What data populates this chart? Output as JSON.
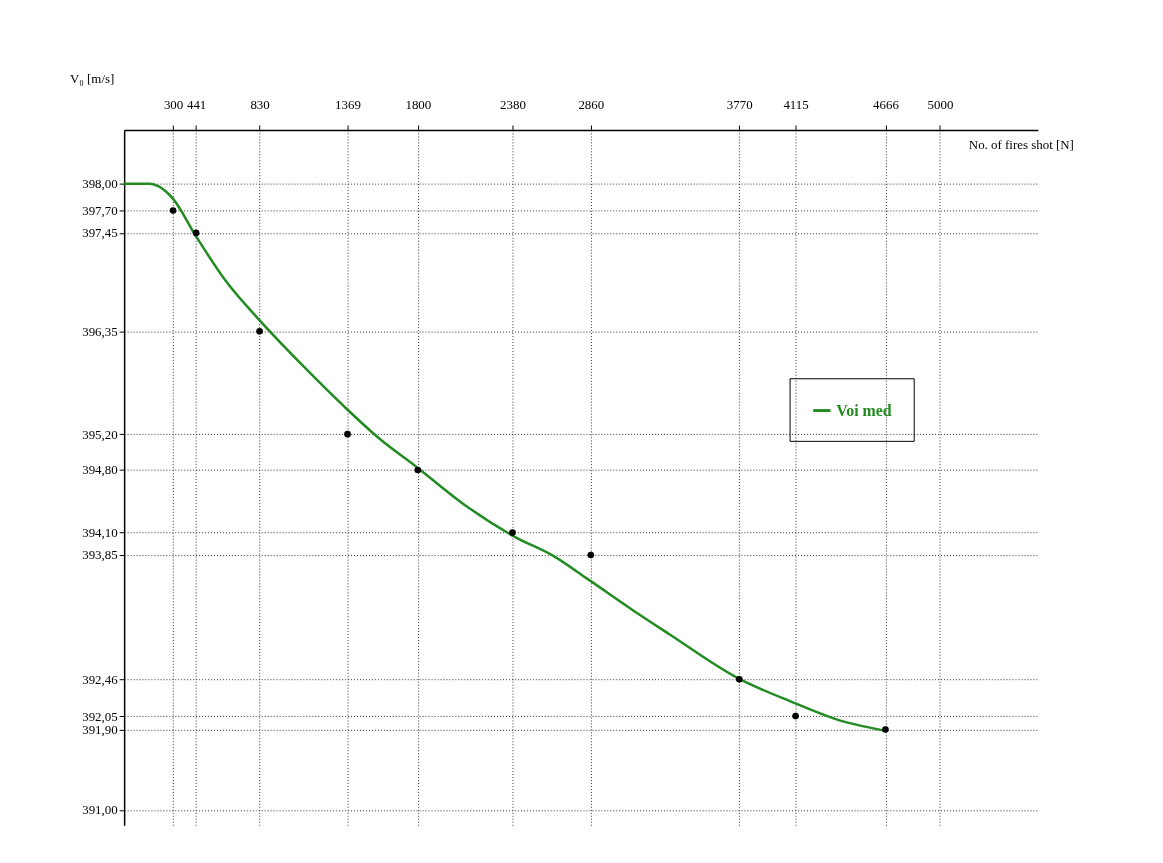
{
  "chart_data": {
    "type": "scatter",
    "xlabel": "No. of fires shot [N]",
    "ylabel": "V₀ [m/s]",
    "xlim": [
      0,
      5600
    ],
    "ylim": [
      390.83,
      398.6
    ],
    "xticks": [
      300,
      441,
      830,
      1369,
      1800,
      2380,
      2860,
      3770,
      4115,
      4666,
      5000
    ],
    "yticks": [
      {
        "value": 398.0,
        "label": "398,00"
      },
      {
        "value": 397.7,
        "label": "397,70"
      },
      {
        "value": 397.45,
        "label": "397,45"
      },
      {
        "value": 396.35,
        "label": "396,35"
      },
      {
        "value": 395.2,
        "label": "395,20"
      },
      {
        "value": 394.8,
        "label": "394,80"
      },
      {
        "value": 394.1,
        "label": "394,10"
      },
      {
        "value": 393.85,
        "label": "393,85"
      },
      {
        "value": 392.46,
        "label": "392,46"
      },
      {
        "value": 392.05,
        "label": "392,05"
      },
      {
        "value": 391.9,
        "label": "391,90"
      },
      {
        "value": 391.0,
        "label": "391,00"
      }
    ],
    "grid": true,
    "legend": "right",
    "series": [
      {
        "name": "Voi med",
        "type": "line",
        "color": "#228b22",
        "line_style": "solid",
        "x": [
          0,
          158,
          212,
          300,
          441,
          620,
          842,
          1109,
          1348,
          1571,
          1788,
          2087,
          2397,
          2630,
          2842,
          3120,
          3337,
          3755,
          4103,
          4370,
          4652
        ],
        "values": [
          398.0,
          398.0,
          397.97,
          397.83,
          397.41,
          396.92,
          396.45,
          395.94,
          395.51,
          395.14,
          394.84,
          394.41,
          394.05,
          393.84,
          393.58,
          393.23,
          392.97,
          392.48,
          392.2,
          392.01,
          391.89
        ]
      },
      {
        "type": "scatter",
        "color": "#000000",
        "marker": "circle",
        "x": [
          300,
          441,
          830,
          1369,
          1800,
          2380,
          2860,
          3770,
          4115,
          4666
        ],
        "values": [
          397.7,
          397.45,
          396.35,
          395.2,
          394.8,
          394.1,
          393.85,
          392.46,
          392.05,
          391.9
        ]
      }
    ]
  }
}
